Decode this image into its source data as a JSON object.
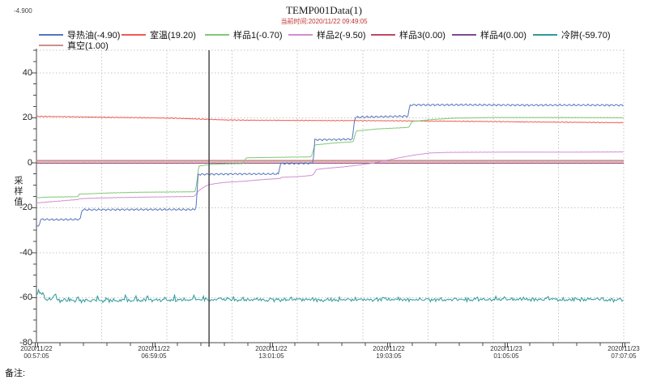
{
  "window": {
    "readout_value": "-4.900",
    "remark_label": "备注:"
  },
  "header": {
    "title": "TEMP001Data(1)",
    "current_time_label": "当前时间:2020/11/22  09:49:05"
  },
  "legend": {
    "items": [
      {
        "series_id": "heat-transfer-oil",
        "label": "导热油(-4.90)",
        "row": 0,
        "col": 0
      },
      {
        "series_id": "room-temp",
        "label": "室温(19.20)",
        "row": 0,
        "col": 1
      },
      {
        "series_id": "sample-1",
        "label": "样品1(-0.70)",
        "row": 0,
        "col": 2
      },
      {
        "series_id": "sample-2",
        "label": "样品2(-9.50)",
        "row": 0,
        "col": 3
      },
      {
        "series_id": "sample-3",
        "label": "样品3(0.00)",
        "row": 0,
        "col": 4
      },
      {
        "series_id": "sample-4",
        "label": "样品4(0.00)",
        "row": 0,
        "col": 5
      },
      {
        "series_id": "cold-trap",
        "label": "冷阱(-59.70)",
        "row": 0,
        "col": 6
      },
      {
        "series_id": "vacuum",
        "label": "真空(1.00)",
        "row": 1,
        "col": 0
      }
    ]
  },
  "chart_data": {
    "type": "line",
    "title": "TEMP001Data(1)",
    "ylabel": "采样值",
    "y_axis": {
      "range": [
        -80,
        50
      ],
      "major_ticks": [
        40,
        20,
        0,
        -20,
        -40,
        -60,
        -80
      ],
      "minor_step": 5,
      "grid": "dotted"
    },
    "x_axis": {
      "range_hours": [
        0,
        30.1667
      ],
      "minor_tick_count": 25,
      "grid_divisions": 9,
      "labels": [
        {
          "date": "2020/11/22",
          "time": "00:57:05"
        },
        {
          "date": "2020/11/22",
          "time": "06:59:05"
        },
        {
          "date": "2020/11/22",
          "time": "13:01:05"
        },
        {
          "date": "2020/11/22",
          "time": "19:03:05"
        },
        {
          "date": "2020/11/23",
          "time": "01:05:05"
        },
        {
          "date": "2020/11/23",
          "time": "07:07:05"
        }
      ]
    },
    "cursor": {
      "hours": 8.8667,
      "label": "2020/11/22 09:49:05"
    },
    "series": [
      {
        "id": "cold-trap",
        "name": "冷阱",
        "value_now": -59.7,
        "color": "#2f9a9a",
        "width": 1,
        "points": [
          [
            0,
            -58.5
          ],
          [
            0.25,
            -57.8
          ],
          [
            0.5,
            -60.5
          ],
          [
            1,
            -61.2
          ],
          [
            2,
            -61.3
          ],
          [
            3,
            -61.1
          ],
          [
            4,
            -61.2
          ],
          [
            5,
            -61.1
          ],
          [
            6,
            -61.2
          ],
          [
            7,
            -61.1
          ],
          [
            8,
            -61.0
          ],
          [
            8.87,
            -60.9
          ],
          [
            9.5,
            -60.8
          ],
          [
            11,
            -60.9
          ],
          [
            13,
            -60.8
          ],
          [
            15,
            -60.9
          ],
          [
            17,
            -60.8
          ],
          [
            19,
            -60.8
          ],
          [
            21,
            -60.9
          ],
          [
            23,
            -60.8
          ],
          [
            25,
            -60.8
          ],
          [
            27,
            -60.9
          ],
          [
            29,
            -60.8
          ],
          [
            30.17,
            -61.0
          ]
        ]
      },
      {
        "id": "sample-4",
        "name": "样品4",
        "value_now": 0.0,
        "color": "#7d4a96",
        "width": 1.3,
        "points": [
          [
            0,
            -0.2
          ],
          [
            30.17,
            -0.2
          ]
        ]
      },
      {
        "id": "sample-3",
        "name": "样品3",
        "value_now": 0.0,
        "color": "#bf4a5f",
        "width": 1.3,
        "dash": "4 3",
        "points": [
          [
            0,
            -0.2
          ],
          [
            30.17,
            -0.2
          ]
        ]
      },
      {
        "id": "vacuum",
        "name": "真空",
        "value_now": 1.0,
        "color": "#c99090",
        "width": 2.2,
        "points": [
          [
            0,
            0.85
          ],
          [
            30.17,
            0.85
          ]
        ]
      },
      {
        "id": "room-temp",
        "name": "室温",
        "value_now": 19.2,
        "color": "#ef5a52",
        "width": 1,
        "points": [
          [
            0,
            20.6
          ],
          [
            1.5,
            20.45
          ],
          [
            3.5,
            20.2
          ],
          [
            5.5,
            20.0
          ],
          [
            7,
            19.8
          ],
          [
            8,
            19.5
          ],
          [
            8.87,
            19.25
          ],
          [
            9.8,
            19.0
          ],
          [
            11,
            18.9
          ],
          [
            13,
            18.8
          ],
          [
            15,
            18.75
          ],
          [
            17,
            18.7
          ],
          [
            19,
            18.6
          ],
          [
            20.5,
            18.5
          ],
          [
            22,
            18.4
          ],
          [
            23.5,
            18.3
          ],
          [
            25,
            18.15
          ],
          [
            26.5,
            18.05
          ],
          [
            28,
            17.95
          ],
          [
            29.2,
            17.85
          ],
          [
            30.17,
            17.8
          ]
        ]
      },
      {
        "id": "sample-2",
        "name": "样品2",
        "value_now": -9.5,
        "color": "#d18fd1",
        "width": 1,
        "points": [
          [
            0,
            -17.9
          ],
          [
            0.8,
            -17.3
          ],
          [
            2.1,
            -16.4
          ],
          [
            2.2,
            -16.0
          ],
          [
            3.6,
            -15.6
          ],
          [
            5.5,
            -15.3
          ],
          [
            8.1,
            -15.0
          ],
          [
            8.35,
            -12.3
          ],
          [
            8.65,
            -10.6
          ],
          [
            8.87,
            -9.7
          ],
          [
            9.6,
            -8.8
          ],
          [
            10.7,
            -8.2
          ],
          [
            11.6,
            -7.5
          ],
          [
            12.5,
            -7.0
          ],
          [
            12.62,
            -6.5
          ],
          [
            13.6,
            -6.1
          ],
          [
            14.15,
            -5.6
          ],
          [
            14.22,
            -5.3
          ],
          [
            14.38,
            -3.0
          ],
          [
            14.9,
            -2.5
          ],
          [
            15.8,
            -1.8
          ],
          [
            16.6,
            -1.0
          ],
          [
            17.2,
            -0.3
          ],
          [
            17.9,
            0.9
          ],
          [
            18.7,
            2.3
          ],
          [
            19.4,
            3.4
          ],
          [
            20.2,
            4.3
          ],
          [
            21.2,
            4.6
          ],
          [
            24,
            4.7
          ],
          [
            27.5,
            4.7
          ],
          [
            30.17,
            4.8
          ]
        ]
      },
      {
        "id": "sample-1",
        "name": "样品1",
        "value_now": -0.7,
        "color": "#82c877",
        "width": 1,
        "points": [
          [
            0,
            -15.6
          ],
          [
            0.5,
            -15.3
          ],
          [
            2.12,
            -15.1
          ],
          [
            2.2,
            -14.0
          ],
          [
            3.5,
            -13.5
          ],
          [
            5.4,
            -13.1
          ],
          [
            7,
            -13.0
          ],
          [
            8.15,
            -12.9
          ],
          [
            8.25,
            -8
          ],
          [
            8.33,
            -1.5
          ],
          [
            8.87,
            -0.8
          ],
          [
            9.8,
            -0.5
          ],
          [
            10.62,
            -0.4
          ],
          [
            10.72,
            1.5
          ],
          [
            10.8,
            2.2
          ],
          [
            12.5,
            2.4
          ],
          [
            14.12,
            2.6
          ],
          [
            14.3,
            7.9
          ],
          [
            15.3,
            8.8
          ],
          [
            16.27,
            9.3
          ],
          [
            16.42,
            14.1
          ],
          [
            17.5,
            15.0
          ],
          [
            19.12,
            15.7
          ],
          [
            19.3,
            18.3
          ],
          [
            20.3,
            19.2
          ],
          [
            21.5,
            19.8
          ],
          [
            23.5,
            20.1
          ],
          [
            27,
            20.1
          ],
          [
            30.17,
            20.0
          ]
        ]
      },
      {
        "id": "heat-transfer-oil",
        "name": "导热油",
        "value_now": -4.9,
        "color": "#5575bd",
        "width": 1,
        "points": [
          [
            0,
            -28.2
          ],
          [
            0.12,
            -28.4
          ],
          [
            0.2,
            -25.2
          ],
          [
            1.0,
            -25.3
          ],
          [
            2.25,
            -25.2
          ],
          [
            2.33,
            -20.9
          ],
          [
            5,
            -20.8
          ],
          [
            8.18,
            -20.8
          ],
          [
            8.24,
            -15
          ],
          [
            8.3,
            -5.2
          ],
          [
            10,
            -5.0
          ],
          [
            12.44,
            -5.0
          ],
          [
            12.52,
            -0.4
          ],
          [
            14.18,
            -0.2
          ],
          [
            14.24,
            3
          ],
          [
            14.3,
            10.2
          ],
          [
            15.5,
            10.3
          ],
          [
            16.23,
            10.5
          ],
          [
            16.29,
            15
          ],
          [
            16.35,
            20.2
          ],
          [
            18,
            20.5
          ],
          [
            19.08,
            20.7
          ],
          [
            19.14,
            23.5
          ],
          [
            19.2,
            25.7
          ],
          [
            22,
            25.7
          ],
          [
            26,
            25.6
          ],
          [
            30.17,
            25.6
          ]
        ]
      }
    ]
  }
}
